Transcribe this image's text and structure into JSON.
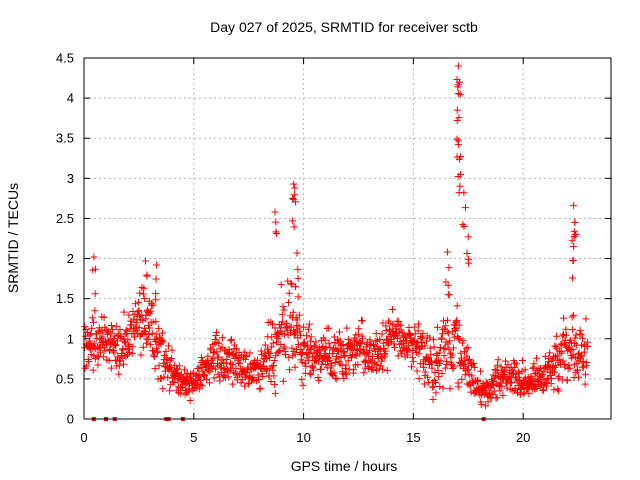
{
  "chart_data": {
    "type": "scatter",
    "title": "Day 027 of 2025, SRMTID for receiver sctb",
    "xlabel": "GPS time / hours",
    "ylabel": "SRMTID / TECUs",
    "xlim": [
      0,
      24
    ],
    "ylim": [
      0,
      4.5
    ],
    "x_ticks": [
      0,
      5,
      10,
      15,
      20
    ],
    "x_tick_labels": [
      "0",
      "5",
      "10",
      "15",
      "20"
    ],
    "y_ticks": [
      0,
      0.5,
      1,
      1.5,
      2,
      2.5,
      3,
      3.5,
      4,
      4.5
    ],
    "y_tick_labels": [
      "0",
      "0.5",
      "1",
      "1.5",
      "2",
      "2.5",
      "3",
      "3.5",
      "4",
      "4.5"
    ],
    "grid": true,
    "marker": "+",
    "color": "#ff0000",
    "series": [
      {
        "name": "SRMTID",
        "envelope_hours": [
          0,
          0.5,
          1,
          1.5,
          2,
          2.5,
          3,
          3.5,
          4,
          4.5,
          5,
          5.5,
          6,
          6.5,
          7,
          7.5,
          8,
          8.5,
          9,
          9.5,
          10,
          10.5,
          11,
          11.5,
          12,
          12.5,
          13,
          13.5,
          14,
          14.5,
          15,
          15.5,
          16,
          16.5,
          17,
          17.5,
          18,
          18.5,
          19,
          19.5,
          20,
          20.5,
          21,
          21.5,
          22,
          22.5,
          23
        ],
        "typical_tecu": [
          0.95,
          1.0,
          0.95,
          0.85,
          1.0,
          1.25,
          1.2,
          0.8,
          0.6,
          0.45,
          0.45,
          0.6,
          0.8,
          0.75,
          0.65,
          0.6,
          0.6,
          0.85,
          1.05,
          1.2,
          0.85,
          0.75,
          0.8,
          0.75,
          0.85,
          0.9,
          0.8,
          0.85,
          1.0,
          0.95,
          0.9,
          0.85,
          0.75,
          0.9,
          1.0,
          0.55,
          0.35,
          0.4,
          0.55,
          0.5,
          0.45,
          0.45,
          0.5,
          0.75,
          0.9,
          0.8,
          0.85
        ],
        "spread_tecu": [
          0.25,
          0.35,
          0.25,
          0.25,
          0.3,
          0.35,
          0.35,
          0.3,
          0.2,
          0.15,
          0.15,
          0.2,
          0.25,
          0.25,
          0.25,
          0.2,
          0.2,
          0.35,
          0.45,
          0.5,
          0.3,
          0.25,
          0.25,
          0.25,
          0.25,
          0.25,
          0.25,
          0.25,
          0.25,
          0.25,
          0.25,
          0.3,
          0.35,
          0.4,
          0.45,
          0.2,
          0.15,
          0.15,
          0.2,
          0.2,
          0.2,
          0.2,
          0.2,
          0.3,
          0.35,
          0.3,
          0.3
        ],
        "peaks": [
          {
            "x": 0.45,
            "y": 2.02
          },
          {
            "x": 2.8,
            "y": 1.97
          },
          {
            "x": 3.3,
            "y": 1.92
          },
          {
            "x": 8.7,
            "y": 2.58
          },
          {
            "x": 9.55,
            "y": 2.93
          },
          {
            "x": 9.6,
            "y": 2.88
          },
          {
            "x": 9.7,
            "y": 2.07
          },
          {
            "x": 16.55,
            "y": 2.08
          },
          {
            "x": 17.05,
            "y": 4.4
          },
          {
            "x": 17.1,
            "y": 4.2
          },
          {
            "x": 17.0,
            "y": 3.85
          },
          {
            "x": 17.05,
            "y": 3.42
          },
          {
            "x": 17.15,
            "y": 3.27
          },
          {
            "x": 17.3,
            "y": 2.82
          },
          {
            "x": 17.5,
            "y": 2.27
          },
          {
            "x": 22.3,
            "y": 2.66
          },
          {
            "x": 22.35,
            "y": 2.45
          },
          {
            "x": 22.3,
            "y": 2.15
          }
        ]
      }
    ],
    "zero_markers_hours": [
      0.45,
      1.0,
      1.4,
      3.75,
      3.85,
      4.5,
      18.2
    ]
  }
}
